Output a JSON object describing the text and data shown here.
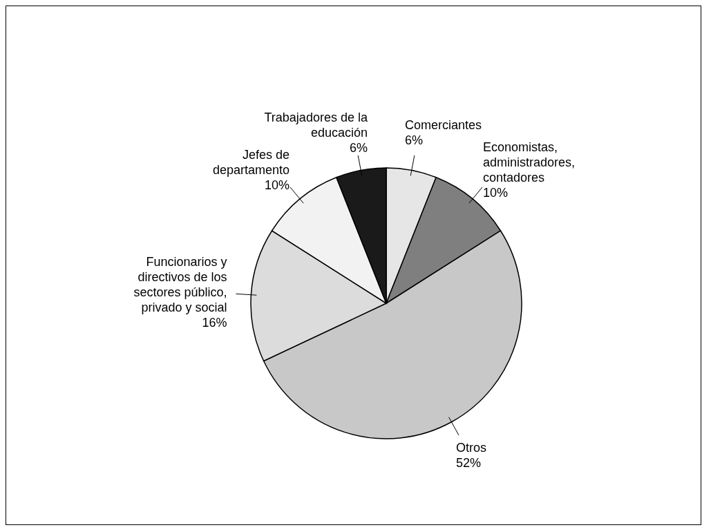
{
  "chart_data": {
    "type": "pie",
    "categories": [
      "Comerciantes",
      "Economistas, administradores, contadores",
      "Otros",
      "Funcionarios y directivos de los sectores público, privado y social",
      "Jefes de departamento",
      "Trabajadores de la educación"
    ],
    "values": [
      6,
      10,
      52,
      16,
      10,
      6
    ],
    "value_labels": [
      "6%",
      "10%",
      "52%",
      "16%",
      "10%",
      "6%"
    ],
    "colors": [
      "#e6e6e6",
      "#7f7f7f",
      "#c8c8c8",
      "#dcdcdc",
      "#f2f2f2",
      "#1a1a1a"
    ]
  }
}
